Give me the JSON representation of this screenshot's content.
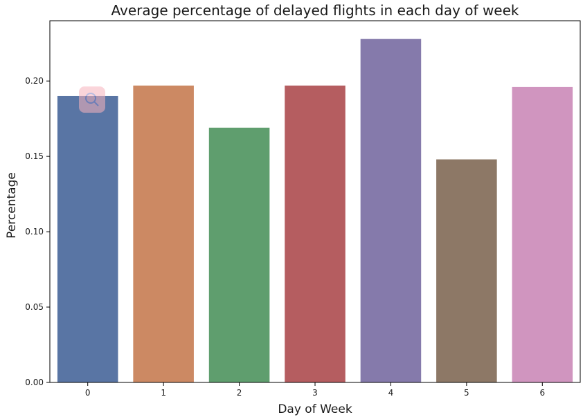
{
  "chart_data": {
    "type": "bar",
    "title": "Average percentage of delayed flights in each day of week",
    "xlabel": "Day of Week",
    "ylabel": "Percentage",
    "categories": [
      "0",
      "1",
      "2",
      "3",
      "4",
      "5",
      "6"
    ],
    "values": [
      0.19,
      0.197,
      0.169,
      0.197,
      0.228,
      0.148,
      0.196
    ],
    "colors": [
      "#5975a4",
      "#cc8963",
      "#5f9e6e",
      "#b55d60",
      "#857aab",
      "#8d7866",
      "#d095bf"
    ],
    "ylim": [
      0,
      0.24
    ],
    "yticks": [
      0.0,
      0.05,
      0.1,
      0.15,
      0.2
    ],
    "ytick_labels": [
      "0.00",
      "0.05",
      "0.10",
      "0.15",
      "0.20"
    ],
    "grid": false,
    "legend": "none"
  },
  "overlay": {
    "icon": "search-icon",
    "badge_color": "#f7b3bd"
  }
}
